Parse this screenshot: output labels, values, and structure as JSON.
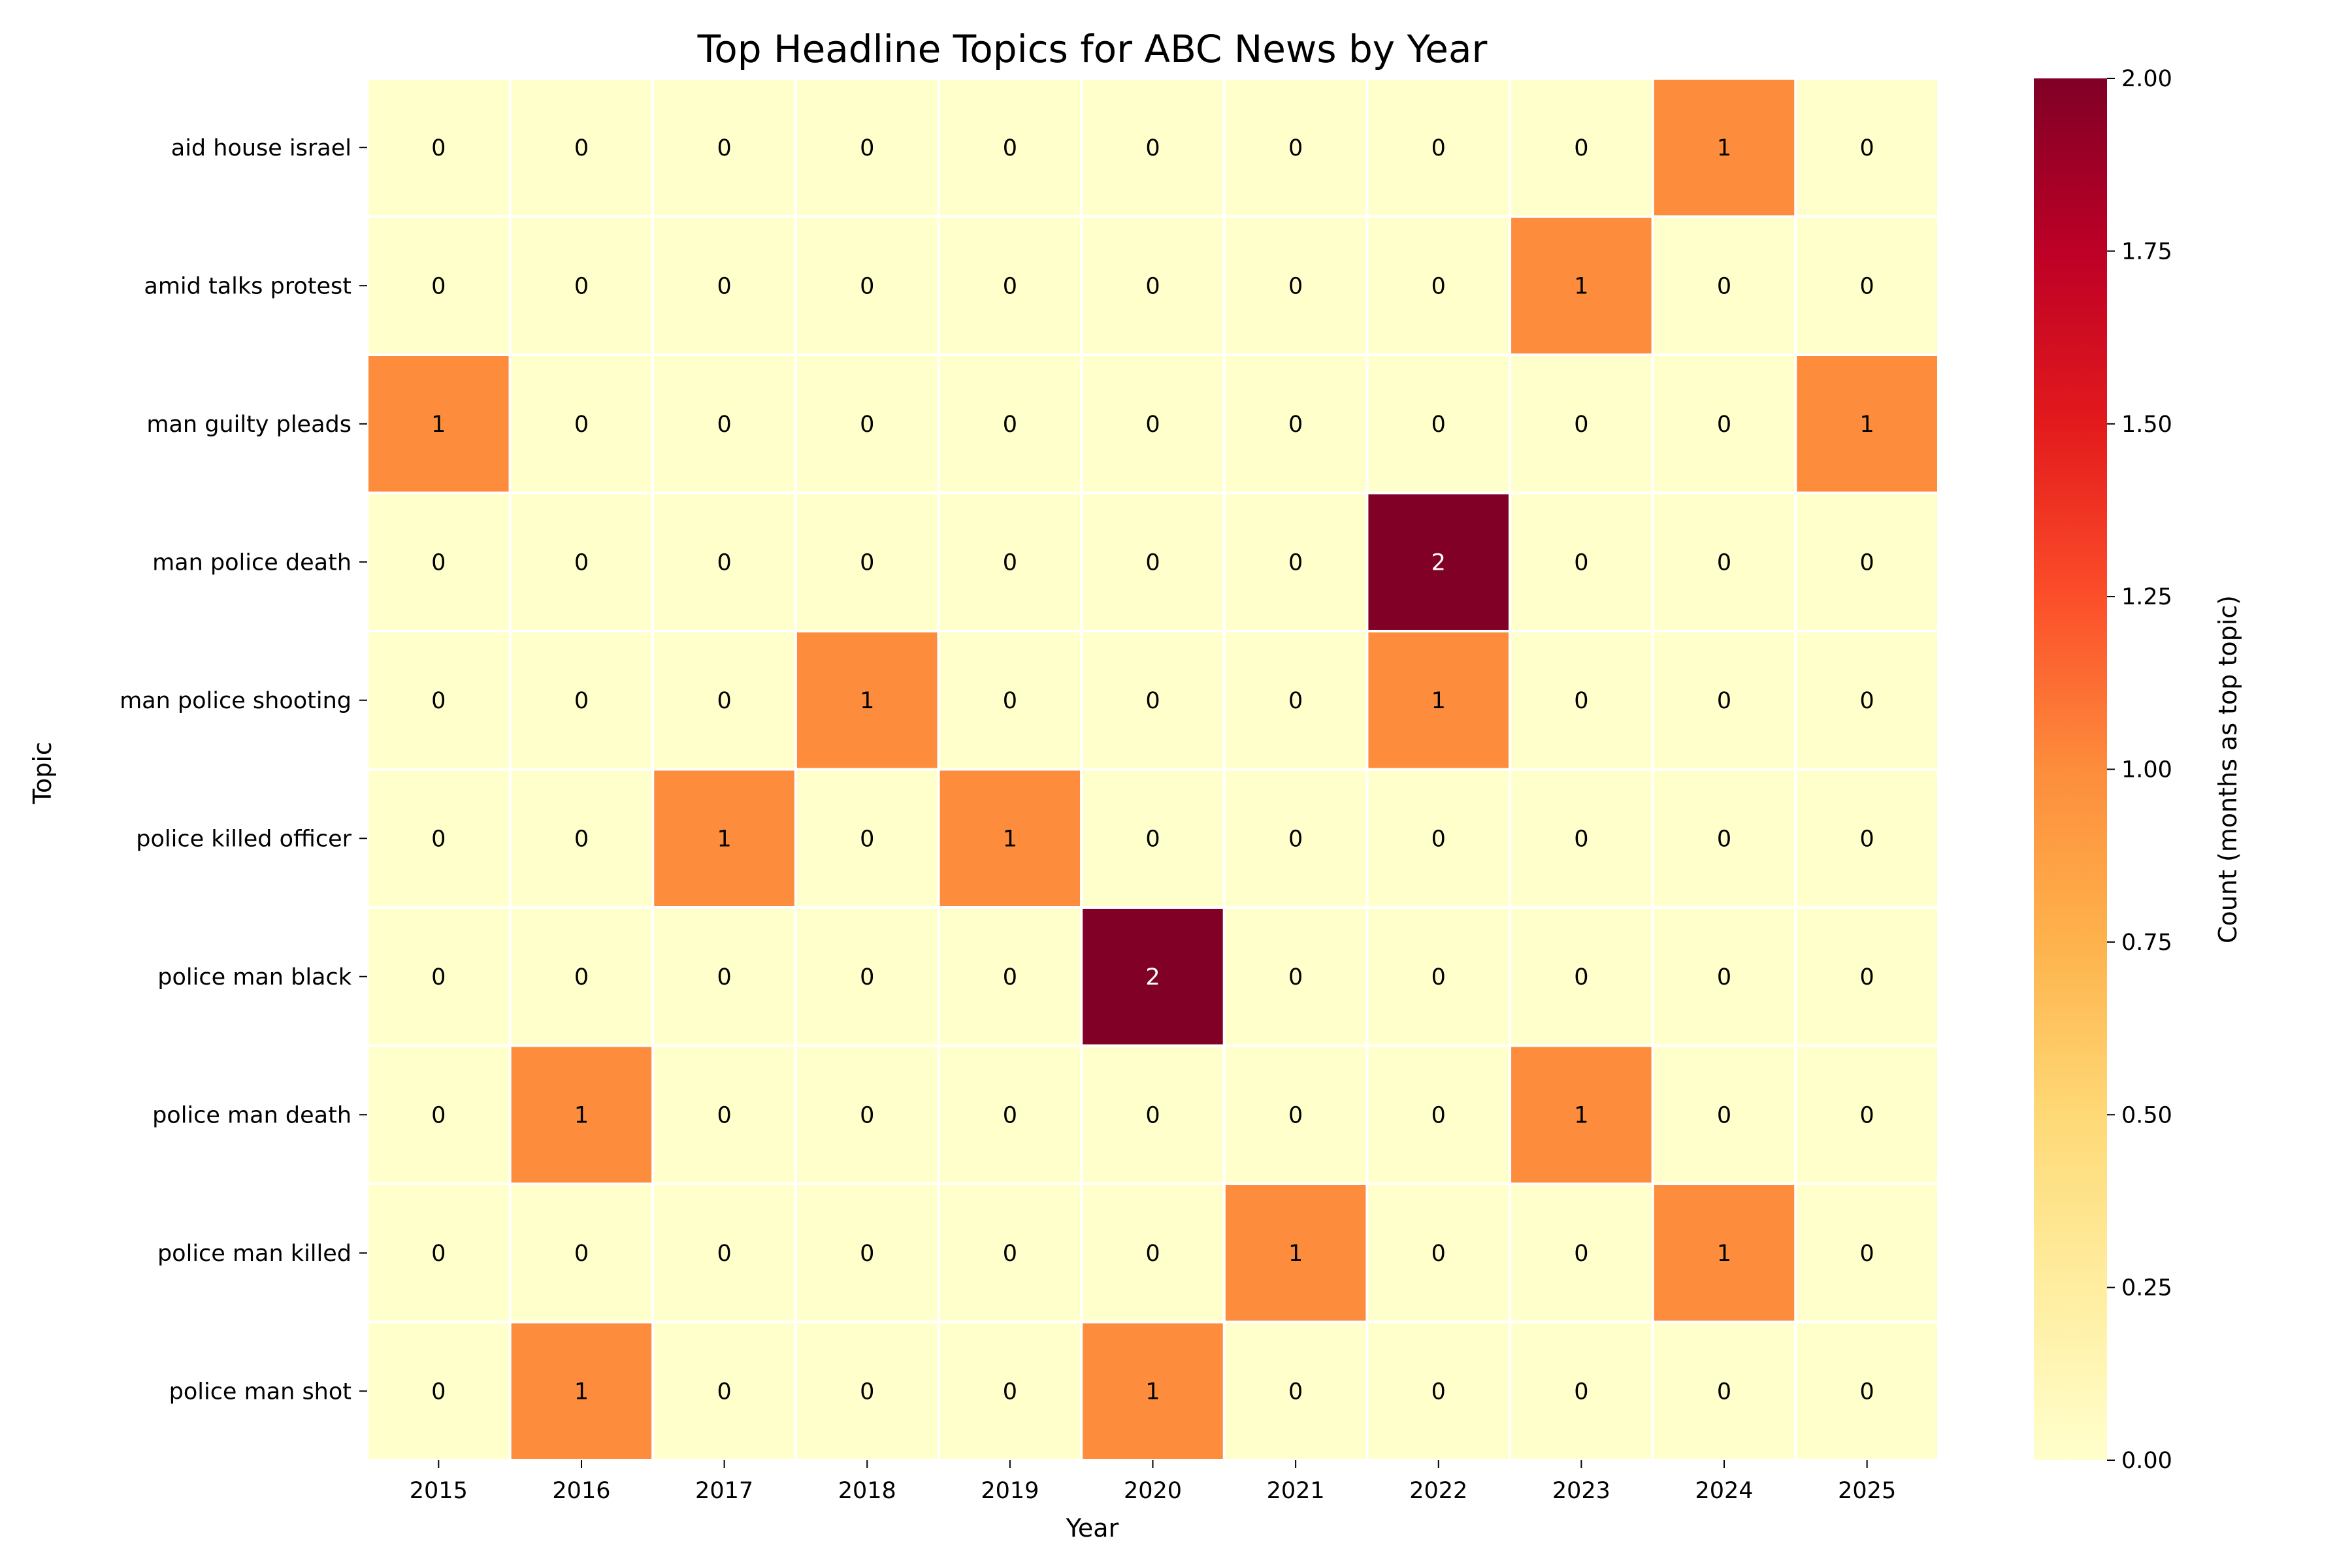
{
  "chart_data": {
    "type": "heatmap",
    "title": "Top Headline Topics for ABC News by Year",
    "xlabel": "Year",
    "ylabel": "Topic",
    "x": [
      "2015",
      "2016",
      "2017",
      "2018",
      "2019",
      "2020",
      "2021",
      "2022",
      "2023",
      "2024",
      "2025"
    ],
    "y": [
      "aid house israel",
      "amid talks protest",
      "man guilty pleads",
      "man police death",
      "man police shooting",
      "police killed officer",
      "police man black",
      "police man death",
      "police man killed",
      "police man shot"
    ],
    "values": [
      [
        0,
        0,
        0,
        0,
        0,
        0,
        0,
        0,
        0,
        1,
        0
      ],
      [
        0,
        0,
        0,
        0,
        0,
        0,
        0,
        0,
        1,
        0,
        0
      ],
      [
        1,
        0,
        0,
        0,
        0,
        0,
        0,
        0,
        0,
        0,
        1
      ],
      [
        0,
        0,
        0,
        0,
        0,
        0,
        0,
        2,
        0,
        0,
        0
      ],
      [
        0,
        0,
        0,
        1,
        0,
        0,
        0,
        1,
        0,
        0,
        0
      ],
      [
        0,
        0,
        1,
        0,
        1,
        0,
        0,
        0,
        0,
        0,
        0
      ],
      [
        0,
        0,
        0,
        0,
        0,
        2,
        0,
        0,
        0,
        0,
        0
      ],
      [
        0,
        1,
        0,
        0,
        0,
        0,
        0,
        0,
        1,
        0,
        0
      ],
      [
        0,
        0,
        0,
        0,
        0,
        0,
        1,
        0,
        0,
        1,
        0
      ],
      [
        0,
        1,
        0,
        0,
        0,
        1,
        0,
        0,
        0,
        0,
        0
      ]
    ],
    "colorbar": {
      "label": "Count (months as top topic)",
      "range": [
        0,
        2
      ],
      "ticks": [
        "0.00",
        "0.25",
        "0.50",
        "0.75",
        "1.00",
        "1.25",
        "1.50",
        "1.75",
        "2.00"
      ],
      "colormap": "YlOrRd",
      "colors": [
        "#ffffcc",
        "#ffeda0",
        "#fed976",
        "#feb24c",
        "#fd8d3c",
        "#fc4e2a",
        "#e31a1c",
        "#bd0026",
        "#800026"
      ]
    },
    "annotate": true,
    "grid": false,
    "cell_border_color": "#ffffff"
  }
}
